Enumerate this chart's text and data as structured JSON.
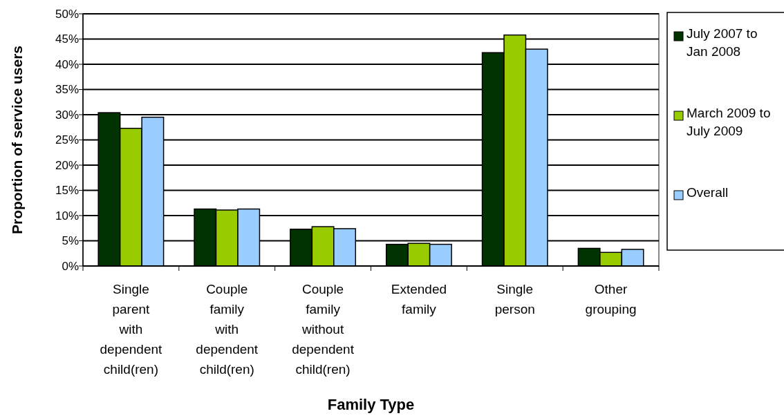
{
  "chart_data": {
    "type": "bar",
    "xlabel": "Family Type",
    "ylabel": "Proportion of service users",
    "categories": [
      "Single parent with dependent child(ren)",
      "Couple family with dependent child(ren)",
      "Couple family without dependent child(ren)",
      "Extended family",
      "Single person",
      "Other grouping"
    ],
    "series": [
      {
        "name": "July 2007 to Jan 2008",
        "color": "#003300",
        "values": [
          30.4,
          11.3,
          7.3,
          4.3,
          42.3,
          3.5
        ]
      },
      {
        "name": "March 2009 to July 2009",
        "color": "#99cc00",
        "values": [
          27.3,
          11.1,
          7.8,
          4.5,
          45.8,
          2.7
        ]
      },
      {
        "name": "Overall",
        "color": "#99ccff",
        "values": [
          29.5,
          11.3,
          7.4,
          4.3,
          43.0,
          3.3
        ]
      }
    ],
    "ylim": [
      0,
      50
    ],
    "yticks": [
      {
        "value": 0,
        "label": "0%"
      },
      {
        "value": 5,
        "label": "5%"
      },
      {
        "value": 10,
        "label": "10%"
      },
      {
        "value": 15,
        "label": "15%"
      },
      {
        "value": 20,
        "label": "20%"
      },
      {
        "value": 25,
        "label": "25%"
      },
      {
        "value": 30,
        "label": "30%"
      },
      {
        "value": 35,
        "label": "35%"
      },
      {
        "value": 40,
        "label": "40%"
      },
      {
        "value": 45,
        "label": "45%"
      },
      {
        "value": 50,
        "label": "50%"
      }
    ],
    "grid": "y",
    "legend": "right"
  }
}
